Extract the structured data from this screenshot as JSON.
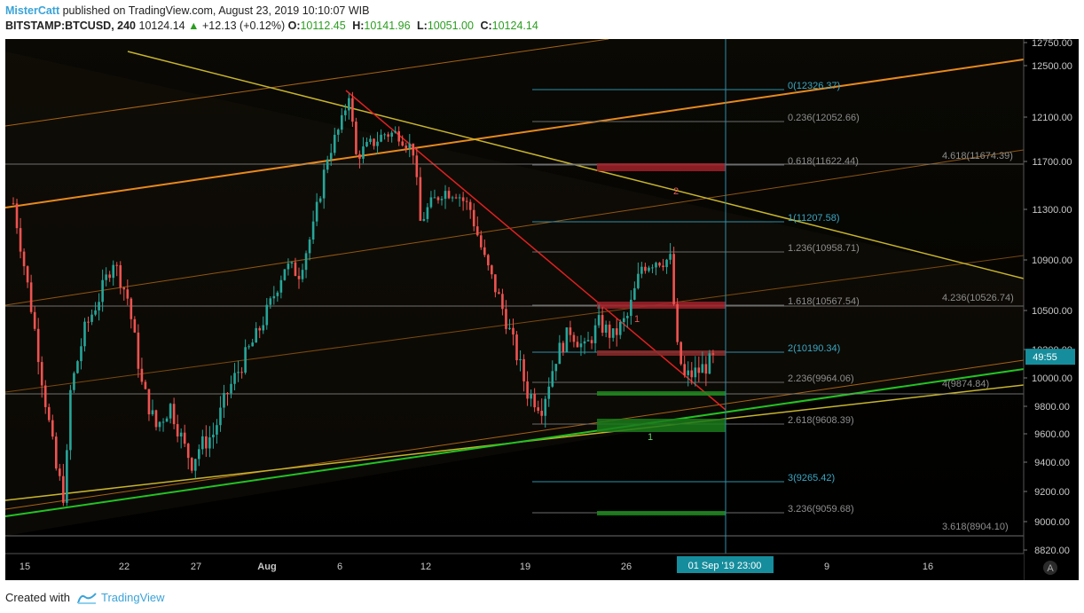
{
  "header": {
    "author": "MisterCatt",
    "published_text": "published on TradingView.com, August 23, 2019 10:10:07 WIB",
    "symbol": "BITSTAMP:BTCUSD, 240",
    "last_price": "10124.14",
    "change": "+12.13 (+0.12%)",
    "ohlc": [
      {
        "key": "O:",
        "value": "10112.45"
      },
      {
        "key": "H:",
        "value": "10141.96"
      },
      {
        "key": "L:",
        "value": "10051.00"
      },
      {
        "key": "C:",
        "value": "10124.14"
      }
    ]
  },
  "footer": {
    "created_with": "Created with",
    "brand": "TradingView"
  },
  "chart_data": {
    "type": "candlestick",
    "symbol": "BITSTAMP:BTCUSD",
    "interval": "240",
    "ylim": [
      8820,
      12750
    ],
    "y_ticks": [
      12750,
      12500,
      12100,
      11700,
      11300,
      10900,
      10500,
      10200,
      10000,
      9800,
      9600,
      9400,
      9200,
      9000,
      8820
    ],
    "y_tick_labels": [
      "12750.00",
      "12500.00",
      "12100.00",
      "11700.00",
      "11300.00",
      "10900.00",
      "10500.00",
      "10200.00",
      "10000.00",
      "9800.00",
      "9600.00",
      "9400.00",
      "9200.00",
      "9000.00",
      "8820.00"
    ],
    "x_ticks": [
      "15",
      "22",
      "27",
      "Aug",
      "6",
      "12",
      "19",
      "26",
      "9",
      "16"
    ],
    "current_price_label": "49:55",
    "crosshair_time_label": "01 Sep '19   23:00",
    "grid": false,
    "price_path": [
      [
        15,
        11350
      ],
      [
        16,
        10700
      ],
      [
        17,
        10000
      ],
      [
        18,
        9350
      ],
      [
        18.6,
        9150
      ],
      [
        19,
        9900
      ],
      [
        20,
        10350
      ],
      [
        21,
        10600
      ],
      [
        22,
        10900
      ],
      [
        23,
        10600
      ],
      [
        24,
        9950
      ],
      [
        25,
        9650
      ],
      [
        26,
        9800
      ],
      [
        27,
        9500
      ],
      [
        27.5,
        9400
      ],
      [
        28,
        9500
      ],
      [
        29,
        9600
      ],
      [
        30,
        9900
      ],
      [
        31,
        10100
      ],
      [
        32,
        10300
      ],
      [
        33,
        10550
      ],
      [
        34,
        10850
      ],
      [
        35,
        10800
      ],
      [
        36,
        11150
      ],
      [
        37,
        11750
      ],
      [
        38,
        12050
      ],
      [
        38.5,
        12300
      ],
      [
        39,
        11750
      ],
      [
        40,
        11850
      ],
      [
        41,
        11950
      ],
      [
        42,
        11950
      ],
      [
        43,
        11800
      ],
      [
        43.5,
        11200
      ],
      [
        44,
        11300
      ],
      [
        45,
        11450
      ],
      [
        46,
        11450
      ],
      [
        47,
        11300
      ],
      [
        48,
        10900
      ],
      [
        49,
        10600
      ],
      [
        50,
        10250
      ],
      [
        51,
        9900
      ],
      [
        52,
        9800
      ],
      [
        53,
        10150
      ],
      [
        54,
        10350
      ],
      [
        55,
        10200
      ],
      [
        56,
        10400
      ],
      [
        57,
        10300
      ],
      [
        58,
        10450
      ],
      [
        59,
        10850
      ],
      [
        60,
        10900
      ],
      [
        61,
        10900
      ],
      [
        61.5,
        10200
      ],
      [
        62,
        10000
      ],
      [
        63,
        10050
      ],
      [
        64,
        10124
      ]
    ],
    "fib_retracement_levels": [
      {
        "ratio": "0",
        "value": 12326.37,
        "label": "0(12326.37)"
      },
      {
        "ratio": "0.236",
        "value": 12052.66,
        "label": "0.236(12052.66)"
      },
      {
        "ratio": "0.618",
        "value": 11622.44,
        "label": "0.618(11622.44)"
      },
      {
        "ratio": "1",
        "value": 11207.58,
        "label": "1(11207.58)"
      },
      {
        "ratio": "1.236",
        "value": 10958.71,
        "label": "1.236(10958.71)"
      },
      {
        "ratio": "1.618",
        "value": 10567.54,
        "label": "1.618(10567.54)"
      },
      {
        "ratio": "2",
        "value": 10190.34,
        "label": "2(10190.34)"
      },
      {
        "ratio": "2.236",
        "value": 9964.06,
        "label": "2.236(9964.06)"
      },
      {
        "ratio": "2.618",
        "value": 9608.39,
        "label": "2.618(9608.39)"
      },
      {
        "ratio": "3",
        "value": 9265.42,
        "label": "3(9265.42)"
      },
      {
        "ratio": "3.236",
        "value": 9059.68,
        "label": "3.236(9059.68)"
      }
    ],
    "fib_extension_levels": [
      {
        "ratio": "4.618",
        "value": 11674.39,
        "label": "4.618(11674.39)"
      },
      {
        "ratio": "4.236",
        "value": 10526.74,
        "label": "4.236(10526.74)"
      },
      {
        "ratio": "4",
        "value": 9874.84,
        "label": "4(9874.84)"
      },
      {
        "ratio": "3.618",
        "value": 8904.1,
        "label": "3.618(8904.10)"
      }
    ],
    "zone_markers": [
      "2",
      "1",
      "1"
    ],
    "colors": {
      "background": "#000000",
      "candle_up": "#26a69a",
      "candle_down": "#ef5350",
      "red_trendline": "#e02020",
      "yellow_trendline": "#c7b42c",
      "orange_channel": "#e8891c",
      "green_support": "#22c322",
      "fib_blue": "#2e8fa8",
      "fib_gray": "#6b6b6b",
      "price_tag": "#168d9c"
    }
  }
}
